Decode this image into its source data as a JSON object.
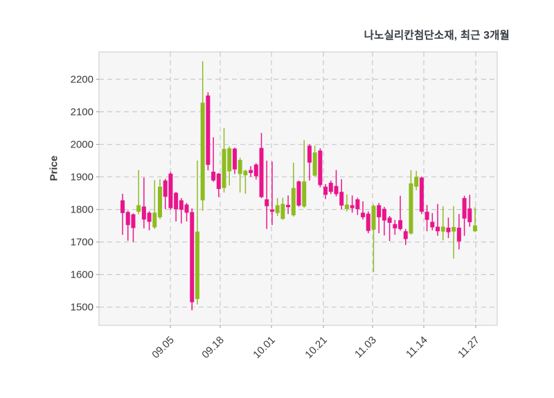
{
  "title": "나노실리칸첨단소재, 최근 3개월",
  "y_axis": {
    "label": "Price"
  },
  "colors": {
    "up": "#8ebc20",
    "down": "#e9148b",
    "grid": "#c9c9cd",
    "plot_bg": "#f6f6f7",
    "plot_border": "#dcdce0",
    "tick_text": "#3a3a3a",
    "title_text": "#363b44"
  },
  "chart_data": {
    "type": "candlestick",
    "title": "나노실리칸첨단소재, 최근 3개월",
    "xlabel": "",
    "ylabel": "Price",
    "ylim": [
      1444,
      2284
    ],
    "y_ticks": [
      1500,
      1600,
      1700,
      1800,
      1900,
      2000,
      2100,
      2200
    ],
    "x_tick_labels": [
      "09.05",
      "09.18",
      "10.01",
      "10.21",
      "11.03",
      "11.14",
      "11.27"
    ],
    "grid": "dashed",
    "legend": "none",
    "candles_format": [
      "open",
      "high",
      "low",
      "close"
    ],
    "candles": [
      [
        1828,
        1848,
        1722,
        1789
      ],
      [
        1792,
        1796,
        1704,
        1752
      ],
      [
        1785,
        1788,
        1700,
        1743
      ],
      [
        1793,
        1921,
        1785,
        1813
      ],
      [
        1809,
        1898,
        1742,
        1769
      ],
      [
        1790,
        1795,
        1736,
        1762
      ],
      [
        1745,
        1890,
        1740,
        1790
      ],
      [
        1776,
        1893,
        1770,
        1870
      ],
      [
        1889,
        1894,
        1801,
        1839
      ],
      [
        1910,
        1915,
        1799,
        1804
      ],
      [
        1851,
        1854,
        1763,
        1801
      ],
      [
        1828,
        1835,
        1757,
        1799
      ],
      [
        1815,
        1820,
        1763,
        1790
      ],
      [
        1792,
        1803,
        1490,
        1515
      ],
      [
        1525,
        1950,
        1508,
        1732
      ],
      [
        1828,
        2255,
        1796,
        2128
      ],
      [
        2150,
        2160,
        1920,
        1937
      ],
      [
        1916,
        2022,
        1885,
        1889
      ],
      [
        1910,
        1912,
        1838,
        1863
      ],
      [
        1866,
        2050,
        1852,
        1986
      ],
      [
        1917,
        1994,
        1874,
        1988
      ],
      [
        1987,
        1990,
        1909,
        1923
      ],
      [
        1909,
        1959,
        1852,
        1952
      ],
      [
        1905,
        1922,
        1848,
        1919
      ],
      [
        1921,
        1933,
        1900,
        1912
      ],
      [
        1938,
        1942,
        1892,
        1902
      ],
      [
        1989,
        2035,
        1835,
        1838
      ],
      [
        1831,
        1950,
        1740,
        1810
      ],
      [
        1800,
        1947,
        1752,
        1793
      ],
      [
        1789,
        1835,
        1780,
        1813
      ],
      [
        1771,
        1836,
        1768,
        1817
      ],
      [
        1814,
        1843,
        1786,
        1807
      ],
      [
        1782,
        1944,
        1778,
        1866
      ],
      [
        1886,
        1889,
        1808,
        1812
      ],
      [
        1809,
        2013,
        1805,
        1886
      ],
      [
        1996,
        2000,
        1889,
        1944
      ],
      [
        1904,
        1996,
        1900,
        1975
      ],
      [
        1981,
        1988,
        1868,
        1875
      ],
      [
        1870,
        1878,
        1832,
        1845
      ],
      [
        1882,
        1889,
        1847,
        1854
      ],
      [
        1872,
        1921,
        1840,
        1847
      ],
      [
        1854,
        1893,
        1801,
        1812
      ],
      [
        1801,
        1846,
        1794,
        1815
      ],
      [
        1813,
        1843,
        1790,
        1804
      ],
      [
        1831,
        1836,
        1783,
        1801
      ],
      [
        1790,
        1825,
        1769,
        1776
      ],
      [
        1787,
        1794,
        1727,
        1734
      ],
      [
        1738,
        1815,
        1608,
        1811
      ],
      [
        1813,
        1820,
        1727,
        1776
      ],
      [
        1802,
        1808,
        1720,
        1766
      ],
      [
        1775,
        1780,
        1703,
        1759
      ],
      [
        1755,
        1768,
        1722,
        1742
      ],
      [
        1767,
        1842,
        1735,
        1740
      ],
      [
        1733,
        1740,
        1691,
        1709
      ],
      [
        1726,
        1921,
        1723,
        1880
      ],
      [
        1870,
        1919,
        1859,
        1900
      ],
      [
        1898,
        1901,
        1786,
        1793
      ],
      [
        1793,
        1814,
        1733,
        1768
      ],
      [
        1762,
        1789,
        1736,
        1745
      ],
      [
        1747,
        1817,
        1719,
        1733
      ],
      [
        1732,
        1810,
        1705,
        1747
      ],
      [
        1744,
        1775,
        1712,
        1730
      ],
      [
        1732,
        1810,
        1649,
        1746
      ],
      [
        1744,
        1786,
        1677,
        1702
      ],
      [
        1835,
        1842,
        1719,
        1772
      ],
      [
        1803,
        1845,
        1747,
        1761
      ],
      [
        1733,
        1807,
        1730,
        1751
      ]
    ]
  }
}
